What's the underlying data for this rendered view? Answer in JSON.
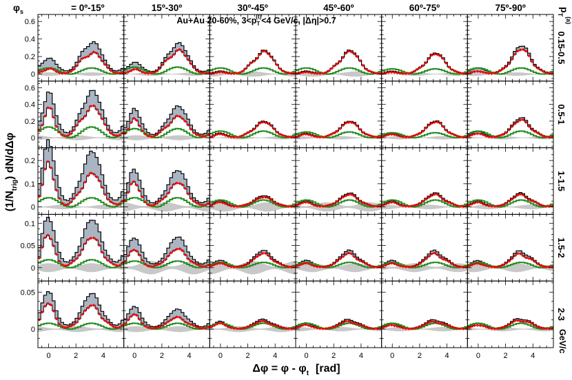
{
  "chart_data": {
    "type": "line",
    "title": "Au+Au 20-60%, 3<p_T^(t)<4 GeV/c, |Δη|>0.7",
    "title_parts": {
      "pre": "Au+Au 20-60%, 3<p",
      "sub": "T",
      "sup": "(t)",
      "post": "<4 GeV/c, |Δη|>0.7"
    },
    "xlabel": "Δφ = φ - φ_t  [rad]",
    "xlabel_parts": {
      "main": "Δφ = φ - φ",
      "sub": "t",
      "post": "[rad]"
    },
    "ylabel": "(1/N_trig) dN/dΔφ",
    "ylabel_parts": {
      "pre": "(1/N",
      "sub": "trig",
      "post": ") dN/dΔφ"
    },
    "row_axis_label": "p_T^(a)",
    "row_axis_parts": {
      "main": "p",
      "sub": "T",
      "sup": "(a)"
    },
    "row_unit": "GeV/c",
    "col_axis_symbol": "φ",
    "col_axis_sub": "s",
    "columns": [
      "0º-15º",
      "15º-30º",
      "30º-45º",
      "45º-60º",
      "60º-75º",
      "75º-90º"
    ],
    "rows": [
      "0.15-0.5",
      "0.5-1",
      "1-1.5",
      "1.5-2",
      "2-3"
    ],
    "xlim": [
      -0.785,
      5.5
    ],
    "xticks": [
      0,
      2,
      4
    ],
    "ylim_by_row": [
      [
        -0.08,
        0.68
      ],
      [
        -0.12,
        0.68
      ],
      [
        -0.032,
        0.255
      ],
      [
        -0.03,
        0.12
      ],
      [
        -0.025,
        0.065
      ]
    ],
    "yticks_by_row": [
      [
        0,
        0.2,
        0.4,
        0.6
      ],
      [
        0,
        0.2,
        0.4,
        0.6
      ],
      [
        0,
        0.1,
        0.2
      ],
      [
        0,
        0.05,
        0.1
      ],
      [
        0,
        0.05
      ]
    ],
    "series": [
      {
        "name": "raw correlation (before v2 subtraction)",
        "style": "black histogram with grey-blue band"
      },
      {
        "name": "background-subtracted",
        "style": "red diamond markers"
      },
      {
        "name": "flow background",
        "style": "green histogram"
      },
      {
        "name": "systematic uncertainty",
        "style": "grey band around zero"
      }
    ],
    "panel_model": {
      "note": "Per-panel peak amplitudes (data units): near = near-side peak at Δφ≈0, away = away-side peak at Δφ≈π, bg = flow-background modulation amplitude, band = v2 systematic band (shaded area between black and red)",
      "near": [
        [
          0.06,
          0.05,
          0.02,
          0.02,
          0.02,
          0.03
        ],
        [
          0.32,
          0.2,
          0.04,
          0.04,
          0.04,
          0.05
        ],
        [
          0.17,
          0.1,
          0.02,
          0.02,
          0.02,
          0.02
        ],
        [
          0.07,
          0.04,
          0.01,
          0.01,
          0.01,
          0.01
        ],
        [
          0.035,
          0.02,
          0.008,
          0.006,
          0.006,
          0.006
        ]
      ],
      "away": [
        [
          0.25,
          0.27,
          0.25,
          0.25,
          0.22,
          0.27
        ],
        [
          0.37,
          0.25,
          0.18,
          0.18,
          0.18,
          0.2
        ],
        [
          0.14,
          0.1,
          0.04,
          0.05,
          0.05,
          0.05
        ],
        [
          0.065,
          0.04,
          0.03,
          0.03,
          0.03,
          0.03
        ],
        [
          0.03,
          0.015,
          0.01,
          0.01,
          0.01,
          0.012
        ]
      ],
      "bg": [
        [
          0.07,
          0.08,
          0.07,
          0.07,
          0.06,
          0.07
        ],
        [
          0.13,
          0.11,
          0.08,
          0.07,
          0.06,
          0.08
        ],
        [
          0.04,
          0.04,
          0.03,
          0.03,
          0.03,
          0.03
        ],
        [
          0.018,
          0.015,
          0.012,
          0.012,
          0.012,
          0.012
        ],
        [
          0.008,
          0.008,
          0.008,
          0.008,
          0.008,
          0.008
        ]
      ],
      "band": [
        [
          0.09,
          0.06,
          0.01,
          0.01,
          0.01,
          0.03
        ],
        [
          0.14,
          0.09,
          0.01,
          0.01,
          0.01,
          0.02
        ],
        [
          0.07,
          0.04,
          0.005,
          0.005,
          0.005,
          0.005
        ],
        [
          0.03,
          0.02,
          0.005,
          0.005,
          0.005,
          0.005
        ],
        [
          0.012,
          0.008,
          0.002,
          0.002,
          0.002,
          0.002
        ]
      ],
      "sys": [
        [
          0.02,
          0.02,
          0.03,
          0.03,
          0.02,
          0.02
        ],
        [
          0.03,
          0.03,
          0.02,
          0.02,
          0.02,
          0.02
        ],
        [
          0.01,
          0.02,
          0.02,
          0.02,
          0.01,
          0.01
        ],
        [
          0.01,
          0.015,
          0.015,
          0.01,
          0.01,
          0.01
        ],
        [
          0.004,
          0.004,
          0.004,
          0.003,
          0.003,
          0.003
        ]
      ]
    },
    "colors": {
      "raw": "#000000",
      "band": "#aab5c4",
      "subtracted": "#ff0000",
      "background": "#1e8c1e",
      "systematic": "#c8c8c8"
    }
  }
}
